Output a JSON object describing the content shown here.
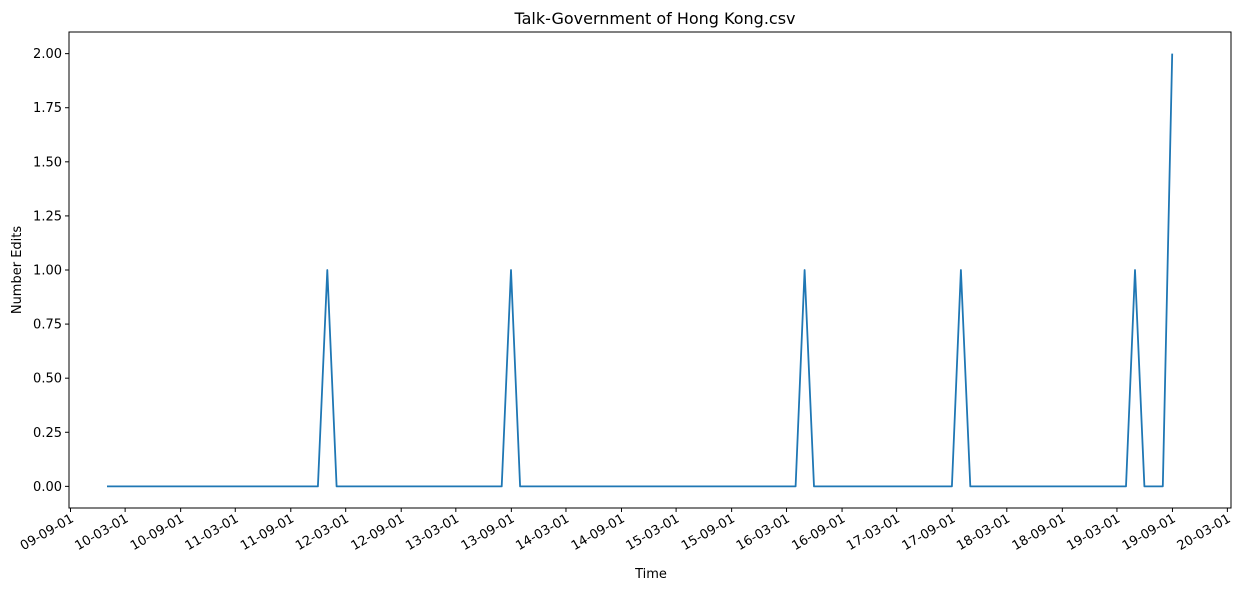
{
  "chart_data": {
    "type": "line",
    "title": "Talk-Government of Hong Kong.csv",
    "xlabel": "Time",
    "ylabel": "Number Edits",
    "x_ticks": [
      "09-09-01",
      "10-03-01",
      "10-09-01",
      "11-03-01",
      "11-09-01",
      "12-03-01",
      "12-09-01",
      "13-03-01",
      "13-09-01",
      "14-03-01",
      "14-09-01",
      "15-03-01",
      "15-09-01",
      "16-03-01",
      "16-09-01",
      "17-03-01",
      "17-09-01",
      "18-03-01",
      "18-09-01",
      "19-03-01",
      "19-09-01",
      "20-03-01"
    ],
    "y_ticks": [
      "0.00",
      "0.25",
      "0.50",
      "0.75",
      "1.00",
      "1.25",
      "1.50",
      "1.75",
      "2.00"
    ],
    "ylim": [
      -0.1,
      2.1
    ],
    "xlim": [
      "2009-08-27",
      "2020-03-13"
    ],
    "grid": false,
    "series": [
      {
        "color": "#1f77b4",
        "x": [
          "2009-12-31",
          "2011-11-30",
          "2011-12-31",
          "2012-01-31",
          "2013-07-31",
          "2013-08-31",
          "2013-09-30",
          "2016-03-31",
          "2016-04-30",
          "2016-05-31",
          "2017-08-31",
          "2017-09-30",
          "2017-10-31",
          "2019-03-31",
          "2019-04-30",
          "2019-05-31",
          "2019-06-30",
          "2019-07-31",
          "2019-08-31"
        ],
        "y": [
          0,
          0,
          1,
          0,
          0,
          1,
          0,
          0,
          1,
          0,
          0,
          1,
          0,
          0,
          1,
          0,
          0,
          0,
          2
        ]
      }
    ]
  }
}
